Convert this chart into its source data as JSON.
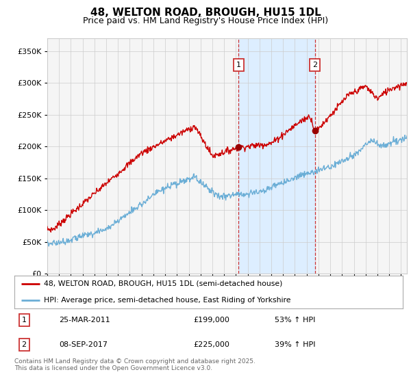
{
  "title": "48, WELTON ROAD, BROUGH, HU15 1DL",
  "subtitle": "Price paid vs. HM Land Registry's House Price Index (HPI)",
  "ytick_values": [
    0,
    50000,
    100000,
    150000,
    200000,
    250000,
    300000,
    350000
  ],
  "ylim": [
    0,
    370000
  ],
  "xlim_start": 1995,
  "xlim_end": 2025.5,
  "sale1_date": 2011.23,
  "sale1_price": 199000,
  "sale1_label": "1",
  "sale1_text": "25-MAR-2011",
  "sale1_pct": "53% ↑ HPI",
  "sale2_date": 2017.69,
  "sale2_price": 225000,
  "sale2_label": "2",
  "sale2_text": "08-SEP-2017",
  "sale2_pct": "39% ↑ HPI",
  "hpi_line_color": "#6baed6",
  "price_line_color": "#cc0000",
  "sale_dot_color": "#990000",
  "shade_color": "#ddeeff",
  "grid_color": "#cccccc",
  "annotation_box_color": "#cc3333",
  "dashed_line_color": "#cc3333",
  "legend_line1": "48, WELTON ROAD, BROUGH, HU15 1DL (semi-detached house)",
  "legend_line2": "HPI: Average price, semi-detached house, East Riding of Yorkshire",
  "footer": "Contains HM Land Registry data © Crown copyright and database right 2025.\nThis data is licensed under the Open Government Licence v3.0.",
  "background_color": "#ffffff",
  "plot_bg_color": "#f5f5f5"
}
